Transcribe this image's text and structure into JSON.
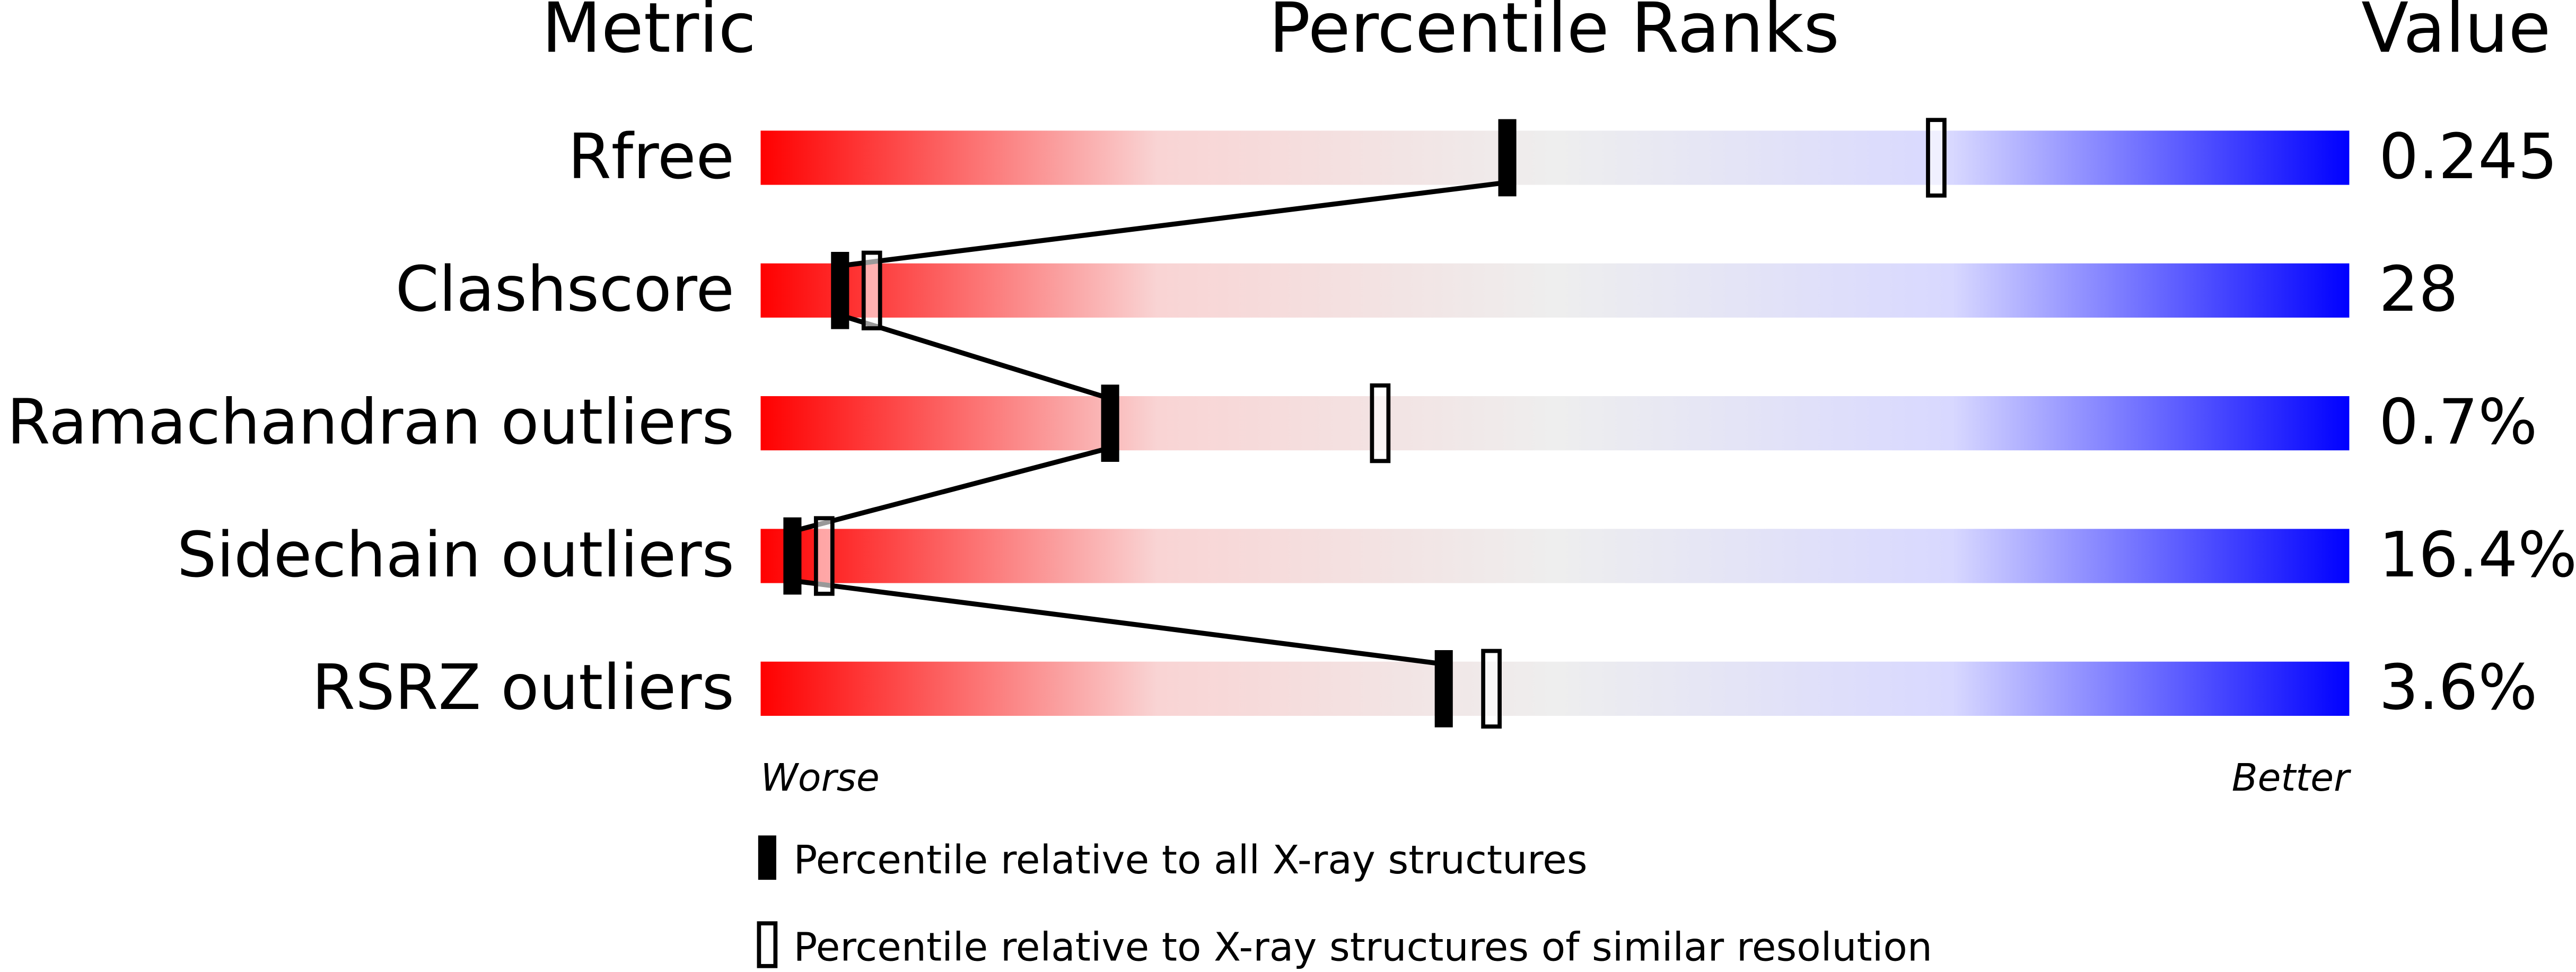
{
  "chart_data": {
    "type": "percentile-slider",
    "headers": [
      "Metric",
      "Percentile Ranks",
      "Value"
    ],
    "categories": [
      "Rfree",
      "Clashscore",
      "Ramachandran outliers",
      "Sidechain outliers",
      "RSRZ outliers"
    ],
    "metric_values": [
      "0.245",
      "28",
      "0.7%",
      "16.4%",
      "3.6%"
    ],
    "series": [
      {
        "name": "Percentile relative to all X-ray structures",
        "color": "#000000",
        "filled": true,
        "values": [
          47,
          5,
          22,
          2,
          43
        ]
      },
      {
        "name": "Percentile relative to X-ray structures of similar resolution",
        "color": "#000000",
        "filled": false,
        "values": [
          74,
          7,
          39,
          4,
          46
        ]
      }
    ],
    "xlim": [
      0,
      100
    ],
    "scale_ends": [
      "Worse",
      "Better"
    ],
    "gradient": [
      "#ff0000",
      "#f9d4d4",
      "#eeeeee",
      "#d8d8ff",
      "#0000ff"
    ]
  }
}
